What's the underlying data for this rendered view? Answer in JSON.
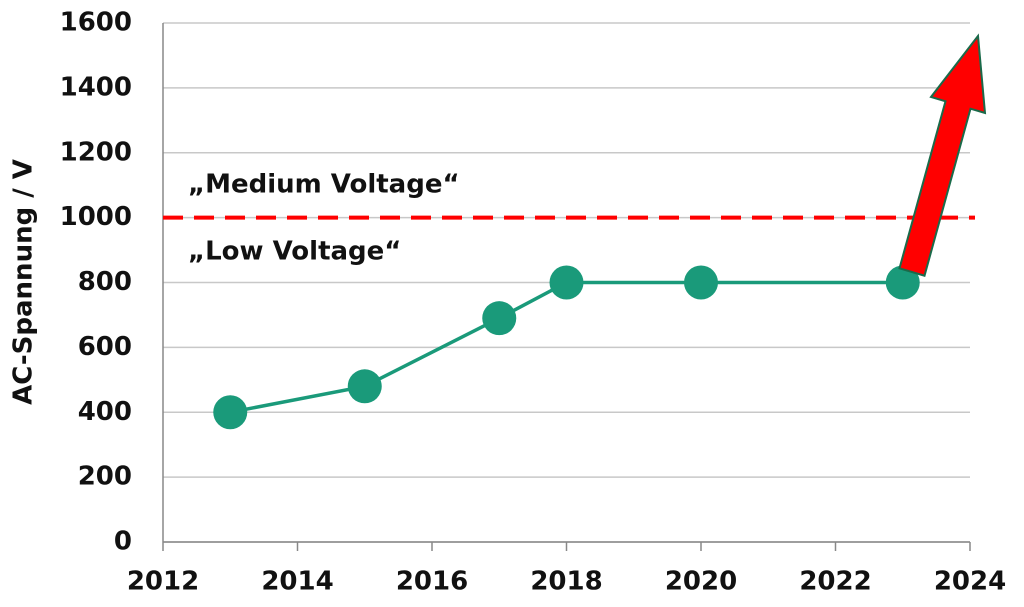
{
  "chart_data": {
    "type": "line",
    "y_label": "AC-Spannung / V",
    "x": [
      2013,
      2015,
      2017,
      2018,
      2020,
      2023
    ],
    "series": [
      {
        "name": "AC-Spannung",
        "color": "#1a9a7a",
        "values": [
          400,
          480,
          690,
          800,
          800,
          800
        ]
      }
    ],
    "xlim": [
      2012,
      2024
    ],
    "xticks": [
      2012,
      2014,
      2016,
      2018,
      2020,
      2022,
      2024
    ],
    "ylim": [
      0,
      1600
    ],
    "yticks": [
      0,
      200,
      400,
      600,
      800,
      1000,
      1200,
      1400,
      1600
    ],
    "grid": true,
    "reference_line": {
      "value": 1000,
      "color": "#ff0000",
      "style": "dashed"
    },
    "annotations": [
      "„Medium Voltage“",
      "„Low Voltage“"
    ]
  }
}
